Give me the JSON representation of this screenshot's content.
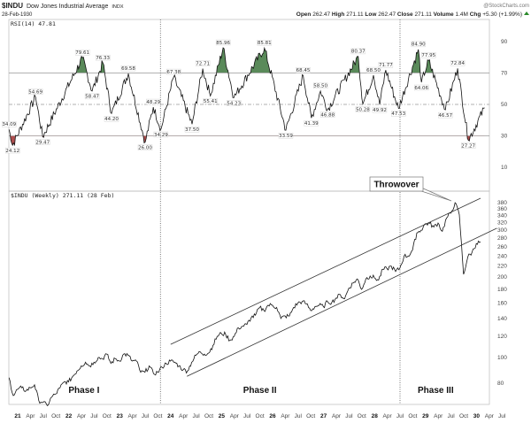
{
  "header": {
    "symbol": "$INDU",
    "name": "Dow Jones Industrial Average",
    "exchange": "INDX",
    "date": "28-Feb-1930",
    "watermark": "@StockCharts.com",
    "open_label": "Open",
    "open": "262.47",
    "high_label": "High",
    "high": "271.11",
    "low_label": "Low",
    "low": "262.47",
    "close_label": "Close",
    "close": "271.11",
    "volume_label": "Volume",
    "volume": "1.4M",
    "chg_label": "Chg",
    "chg": "+5.30 (+1.99%)",
    "chg_icon": "up-triangle-icon"
  },
  "colors": {
    "overbought_fill": "#5a8a5a",
    "oversold_fill": "#b05050",
    "line": "#111111",
    "grid": "#999999"
  },
  "chart_data": [
    {
      "type": "line",
      "title": "RSI(14) 47.81",
      "ylim": [
        0,
        100
      ],
      "yticks": [
        "90",
        "70",
        "50",
        "30",
        "10"
      ],
      "ytick_values": [
        90,
        70,
        50,
        30,
        10
      ],
      "reference_lines": [
        70,
        50,
        30
      ],
      "series": [
        {
          "name": "RSI(14)",
          "points": [
            [
              1920.83,
              34.09
            ],
            [
              1920.9,
              24.12
            ],
            [
              1921.35,
              54.69
            ],
            [
              1921.49,
              29.47
            ],
            [
              1922.27,
              79.61
            ],
            [
              1922.46,
              58.47
            ],
            [
              1922.67,
              76.33
            ],
            [
              1922.84,
              44.2
            ],
            [
              1923.17,
              69.58
            ],
            [
              1923.5,
              26.0
            ],
            [
              1923.66,
              48.29
            ],
            [
              1923.81,
              34.29
            ],
            [
              1924.06,
              67.38
            ],
            [
              1924.42,
              37.5
            ],
            [
              1924.63,
              72.71
            ],
            [
              1924.78,
              55.41
            ],
            [
              1925.03,
              85.96
            ],
            [
              1925.24,
              54.23
            ],
            [
              1925.84,
              85.81
            ],
            [
              1926.26,
              33.59
            ],
            [
              1926.6,
              68.45
            ],
            [
              1926.76,
              41.39
            ],
            [
              1926.94,
              58.5
            ],
            [
              1927.08,
              46.88
            ],
            [
              1927.68,
              80.37
            ],
            [
              1927.77,
              50.28
            ],
            [
              1927.98,
              68.5
            ],
            [
              1928.1,
              49.92
            ],
            [
              1928.22,
              71.77
            ],
            [
              1928.47,
              47.53
            ],
            [
              1928.86,
              84.9
            ],
            [
              1928.92,
              64.06
            ],
            [
              1929.06,
              77.95
            ],
            [
              1929.39,
              46.57
            ],
            [
              1929.63,
              72.84
            ],
            [
              1929.84,
              27.27
            ],
            [
              1930.16,
              47.81
            ]
          ]
        }
      ],
      "annotations": [
        {
          "text": "34.09",
          "date": 1920.83,
          "value": 34.09,
          "pos": "above"
        },
        {
          "text": "24.12",
          "date": 1920.9,
          "value": 24.12,
          "pos": "below"
        },
        {
          "text": "54.69",
          "date": 1921.35,
          "value": 54.69,
          "pos": "above"
        },
        {
          "text": "29.47",
          "date": 1921.49,
          "value": 29.47,
          "pos": "below"
        },
        {
          "text": "79.61",
          "date": 1922.27,
          "value": 79.61,
          "pos": "above"
        },
        {
          "text": "58.47",
          "date": 1922.46,
          "value": 58.47,
          "pos": "below"
        },
        {
          "text": "76.33",
          "date": 1922.67,
          "value": 76.33,
          "pos": "above"
        },
        {
          "text": "44.20",
          "date": 1922.84,
          "value": 44.2,
          "pos": "below"
        },
        {
          "text": "69.58",
          "date": 1923.17,
          "value": 69.58,
          "pos": "above"
        },
        {
          "text": "26.00",
          "date": 1923.5,
          "value": 26.0,
          "pos": "below"
        },
        {
          "text": "48.29",
          "date": 1923.66,
          "value": 48.29,
          "pos": "above"
        },
        {
          "text": "34.29",
          "date": 1923.81,
          "value": 34.29,
          "pos": "below"
        },
        {
          "text": "67.38",
          "date": 1924.06,
          "value": 67.38,
          "pos": "above"
        },
        {
          "text": "37.50",
          "date": 1924.42,
          "value": 37.5,
          "pos": "below"
        },
        {
          "text": "72.71",
          "date": 1924.63,
          "value": 72.71,
          "pos": "above"
        },
        {
          "text": "55.41",
          "date": 1924.78,
          "value": 55.41,
          "pos": "below"
        },
        {
          "text": "85.96",
          "date": 1925.03,
          "value": 85.96,
          "pos": "above"
        },
        {
          "text": "54.23",
          "date": 1925.24,
          "value": 54.23,
          "pos": "below"
        },
        {
          "text": "85.81",
          "date": 1925.84,
          "value": 85.81,
          "pos": "above"
        },
        {
          "text": "33.59",
          "date": 1926.26,
          "value": 33.59,
          "pos": "below"
        },
        {
          "text": "68.45",
          "date": 1926.6,
          "value": 68.45,
          "pos": "above"
        },
        {
          "text": "41.39",
          "date": 1926.76,
          "value": 41.39,
          "pos": "below"
        },
        {
          "text": "58.50",
          "date": 1926.94,
          "value": 58.5,
          "pos": "above"
        },
        {
          "text": "46.88",
          "date": 1927.08,
          "value": 46.88,
          "pos": "below"
        },
        {
          "text": "80.37",
          "date": 1927.68,
          "value": 80.37,
          "pos": "above"
        },
        {
          "text": "50.28",
          "date": 1927.77,
          "value": 50.28,
          "pos": "below"
        },
        {
          "text": "68.50",
          "date": 1927.98,
          "value": 68.5,
          "pos": "above"
        },
        {
          "text": "49.92",
          "date": 1928.1,
          "value": 49.92,
          "pos": "below"
        },
        {
          "text": "71.77",
          "date": 1928.22,
          "value": 71.77,
          "pos": "above"
        },
        {
          "text": "47.53",
          "date": 1928.47,
          "value": 47.53,
          "pos": "below"
        },
        {
          "text": "84.90",
          "date": 1928.86,
          "value": 84.9,
          "pos": "above"
        },
        {
          "text": "64.06",
          "date": 1928.92,
          "value": 64.06,
          "pos": "below"
        },
        {
          "text": "77.95",
          "date": 1929.06,
          "value": 77.95,
          "pos": "above"
        },
        {
          "text": "46.57",
          "date": 1929.39,
          "value": 46.57,
          "pos": "below"
        },
        {
          "text": "72.84",
          "date": 1929.63,
          "value": 72.84,
          "pos": "above"
        },
        {
          "text": "27.27",
          "date": 1929.84,
          "value": 27.27,
          "pos": "below"
        }
      ]
    },
    {
      "type": "line",
      "title": "$INDU (Weekly) 271.11 (28 Feb)",
      "yscale": "log",
      "ylim": [
        66,
        390
      ],
      "yticks": [
        "380",
        "360",
        "340",
        "320",
        "300",
        "280",
        "260",
        "240",
        "220",
        "200",
        "180",
        "160",
        "140",
        "120",
        "100",
        "80"
      ],
      "ytick_values": [
        380,
        360,
        340,
        320,
        300,
        280,
        260,
        240,
        220,
        200,
        180,
        160,
        140,
        120,
        100,
        80
      ],
      "series": [
        {
          "name": "$INDU",
          "start": 1920.83,
          "step_months": 1,
          "values": [
            84,
            72,
            76,
            77,
            75,
            77,
            79,
            69,
            68,
            66,
            71,
            73,
            77,
            81,
            81,
            85,
            89,
            93,
            96,
            93,
            96,
            100,
            99,
            103,
            95,
            99,
            97,
            103,
            102,
            97,
            97,
            88,
            88,
            93,
            87,
            88,
            92,
            95,
            97,
            96,
            93,
            90,
            89,
            96,
            102,
            105,
            103,
            104,
            111,
            120,
            123,
            122,
            116,
            120,
            129,
            131,
            133,
            141,
            144,
            154,
            150,
            157,
            157,
            154,
            140,
            143,
            143,
            154,
            160,
            162,
            159,
            150,
            155,
            157,
            155,
            162,
            161,
            167,
            172,
            166,
            182,
            190,
            197,
            180,
            197,
            202,
            199,
            195,
            214,
            215,
            220,
            210,
            216,
            240,
            240,
            253,
            293,
            300,
            317,
            318,
            308,
            319,
            297,
            333,
            347,
            380,
            343,
            205,
            238,
            248,
            267,
            271
          ]
        }
      ],
      "trendlines": [
        {
          "name": "upper-channel",
          "from": [
            1924.0,
            112
          ],
          "to": [
            1930.08,
            395
          ]
        },
        {
          "name": "lower-channel",
          "from": [
            1924.32,
            85
          ],
          "to": [
            1930.4,
            305
          ]
        }
      ],
      "annotations": [
        {
          "text": "Throwover",
          "type": "callout",
          "date": 1929.65,
          "value": 375
        },
        {
          "text": "Phase I",
          "date": 1922.3,
          "value": 78
        },
        {
          "text": "Phase II",
          "date": 1925.75,
          "value": 78
        },
        {
          "text": "Phase III",
          "date": 1929.2,
          "value": 78
        }
      ],
      "vertical_markers": [
        1923.8,
        1928.5
      ]
    }
  ],
  "xaxis": [
    {
      "t": "21",
      "d": 1921,
      "b": true
    },
    {
      "t": "Apr",
      "d": 1921.25
    },
    {
      "t": "Jul",
      "d": 1921.5
    },
    {
      "t": "Oct",
      "d": 1921.75
    },
    {
      "t": "22",
      "d": 1922,
      "b": true
    },
    {
      "t": "Apr",
      "d": 1922.25
    },
    {
      "t": "Jul",
      "d": 1922.5
    },
    {
      "t": "Oct",
      "d": 1922.75
    },
    {
      "t": "23",
      "d": 1923,
      "b": true
    },
    {
      "t": "Apr",
      "d": 1923.25
    },
    {
      "t": "Jul",
      "d": 1923.5
    },
    {
      "t": "Oct",
      "d": 1923.75
    },
    {
      "t": "24",
      "d": 1924,
      "b": true
    },
    {
      "t": "Apr",
      "d": 1924.25
    },
    {
      "t": "Jul",
      "d": 1924.5
    },
    {
      "t": "Oct",
      "d": 1924.75
    },
    {
      "t": "25",
      "d": 1925,
      "b": true
    },
    {
      "t": "Apr",
      "d": 1925.25
    },
    {
      "t": "Jul",
      "d": 1925.5
    },
    {
      "t": "Oct",
      "d": 1925.75
    },
    {
      "t": "26",
      "d": 1926,
      "b": true
    },
    {
      "t": "Apr",
      "d": 1926.25
    },
    {
      "t": "Jul",
      "d": 1926.5
    },
    {
      "t": "Oct",
      "d": 1926.75
    },
    {
      "t": "27",
      "d": 1927,
      "b": true
    },
    {
      "t": "Apr",
      "d": 1927.25
    },
    {
      "t": "Jul",
      "d": 1927.5
    },
    {
      "t": "Oct",
      "d": 1927.75
    },
    {
      "t": "28",
      "d": 1928,
      "b": true
    },
    {
      "t": "Apr",
      "d": 1928.25
    },
    {
      "t": "Jul",
      "d": 1928.5
    },
    {
      "t": "Oct",
      "d": 1928.75
    },
    {
      "t": "29",
      "d": 1929,
      "b": true
    },
    {
      "t": "Apr",
      "d": 1929.25
    },
    {
      "t": "Jul",
      "d": 1929.5
    },
    {
      "t": "Oct",
      "d": 1929.75
    },
    {
      "t": "30",
      "d": 1930,
      "b": true
    },
    {
      "t": "Apr",
      "d": 1930.25
    },
    {
      "t": "Jul",
      "d": 1930.5
    }
  ]
}
